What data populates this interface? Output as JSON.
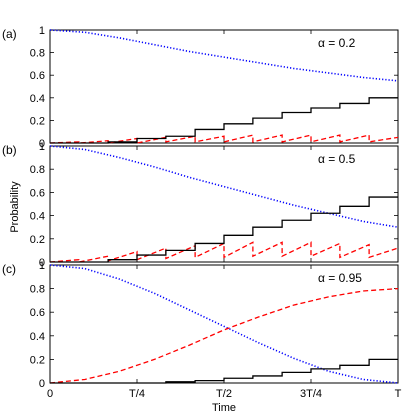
{
  "chart_data": {
    "type": "line",
    "x_label": "Time",
    "y_label": "Probability",
    "x_ticks": [
      "0",
      "T/4",
      "T/2",
      "3T/4",
      "T"
    ],
    "y_ticks": [
      "0",
      "0.2",
      "0.4",
      "0.6",
      "0.8",
      "1"
    ],
    "xlim": [
      0,
      1
    ],
    "ylim": [
      0,
      1
    ],
    "colors": {
      "dotted": "#0000ff",
      "dashed": "#ff0000",
      "solid": "#000000"
    },
    "panels": [
      {
        "label": "(a)",
        "annotation": "α = 0.2",
        "series": [
          {
            "style": "dotted",
            "x": [
              0,
              0.1,
              0.2,
              0.3,
              0.4,
              0.5,
              0.6,
              0.7,
              0.8,
              0.9,
              1.0
            ],
            "y": [
              1.0,
              0.98,
              0.93,
              0.87,
              0.81,
              0.76,
              0.71,
              0.66,
              0.62,
              0.58,
              0.55
            ]
          },
          {
            "style": "dashed",
            "x": [
              0,
              0.083,
              0.083,
              0.167,
              0.167,
              0.25,
              0.25,
              0.333,
              0.333,
              0.417,
              0.417,
              0.5,
              0.5,
              0.583,
              0.583,
              0.667,
              0.667,
              0.75,
              0.75,
              0.833,
              0.833,
              0.917,
              0.917,
              1.0
            ],
            "y": [
              0,
              0.01,
              0,
              0.02,
              0,
              0.04,
              0,
              0.05,
              0.01,
              0.06,
              0.01,
              0.06,
              0.01,
              0.07,
              0.01,
              0.07,
              0.01,
              0.07,
              0.01,
              0.07,
              0.01,
              0.07,
              0.01,
              0.05
            ]
          },
          {
            "style": "solid",
            "x": [
              0,
              0.083,
              0.167,
              0.25,
              0.333,
              0.417,
              0.5,
              0.583,
              0.667,
              0.75,
              0.833,
              0.917,
              1.0
            ],
            "y": [
              0,
              0.0,
              0.01,
              0.04,
              0.06,
              0.12,
              0.17,
              0.22,
              0.27,
              0.31,
              0.35,
              0.4,
              0.4
            ]
          }
        ]
      },
      {
        "label": "(b)",
        "annotation": "α = 0.5",
        "series": [
          {
            "style": "dotted",
            "x": [
              0,
              0.1,
              0.2,
              0.3,
              0.4,
              0.5,
              0.6,
              0.7,
              0.8,
              0.9,
              1.0
            ],
            "y": [
              1.0,
              0.97,
              0.9,
              0.82,
              0.73,
              0.65,
              0.57,
              0.49,
              0.42,
              0.35,
              0.3
            ]
          },
          {
            "style": "dashed",
            "x": [
              0,
              0.083,
              0.083,
              0.167,
              0.167,
              0.25,
              0.25,
              0.333,
              0.333,
              0.417,
              0.417,
              0.5,
              0.5,
              0.583,
              0.583,
              0.667,
              0.667,
              0.75,
              0.75,
              0.833,
              0.833,
              0.917,
              0.917,
              1.0
            ],
            "y": [
              0,
              0.02,
              0,
              0.05,
              0.01,
              0.09,
              0.02,
              0.12,
              0.03,
              0.14,
              0.04,
              0.16,
              0.04,
              0.17,
              0.05,
              0.17,
              0.05,
              0.17,
              0.05,
              0.16,
              0.04,
              0.15,
              0.04,
              0.12
            ]
          },
          {
            "style": "solid",
            "x": [
              0,
              0.083,
              0.167,
              0.25,
              0.333,
              0.417,
              0.5,
              0.583,
              0.667,
              0.75,
              0.833,
              0.917,
              1.0
            ],
            "y": [
              0,
              0.0,
              0.02,
              0.06,
              0.1,
              0.16,
              0.23,
              0.3,
              0.36,
              0.42,
              0.48,
              0.56,
              0.56
            ]
          }
        ]
      },
      {
        "label": "(c)",
        "annotation": "α = 0.95",
        "series": [
          {
            "style": "dotted",
            "x": [
              0,
              0.1,
              0.2,
              0.3,
              0.4,
              0.5,
              0.6,
              0.7,
              0.8,
              0.9,
              1.0
            ],
            "y": [
              1.0,
              0.97,
              0.88,
              0.76,
              0.62,
              0.48,
              0.34,
              0.21,
              0.1,
              0.03,
              0.0
            ]
          },
          {
            "style": "dashed",
            "x": [
              0,
              0.1,
              0.2,
              0.3,
              0.4,
              0.5,
              0.6,
              0.7,
              0.8,
              0.9,
              1.0
            ],
            "y": [
              0,
              0.03,
              0.1,
              0.2,
              0.32,
              0.45,
              0.56,
              0.66,
              0.73,
              0.78,
              0.8
            ]
          },
          {
            "style": "solid",
            "x": [
              0,
              0.083,
              0.167,
              0.25,
              0.333,
              0.417,
              0.5,
              0.583,
              0.667,
              0.75,
              0.833,
              0.917,
              1.0
            ],
            "y": [
              0,
              0.0,
              0.0,
              0.0,
              0.01,
              0.02,
              0.04,
              0.06,
              0.09,
              0.12,
              0.15,
              0.2,
              0.2
            ]
          }
        ]
      }
    ]
  }
}
